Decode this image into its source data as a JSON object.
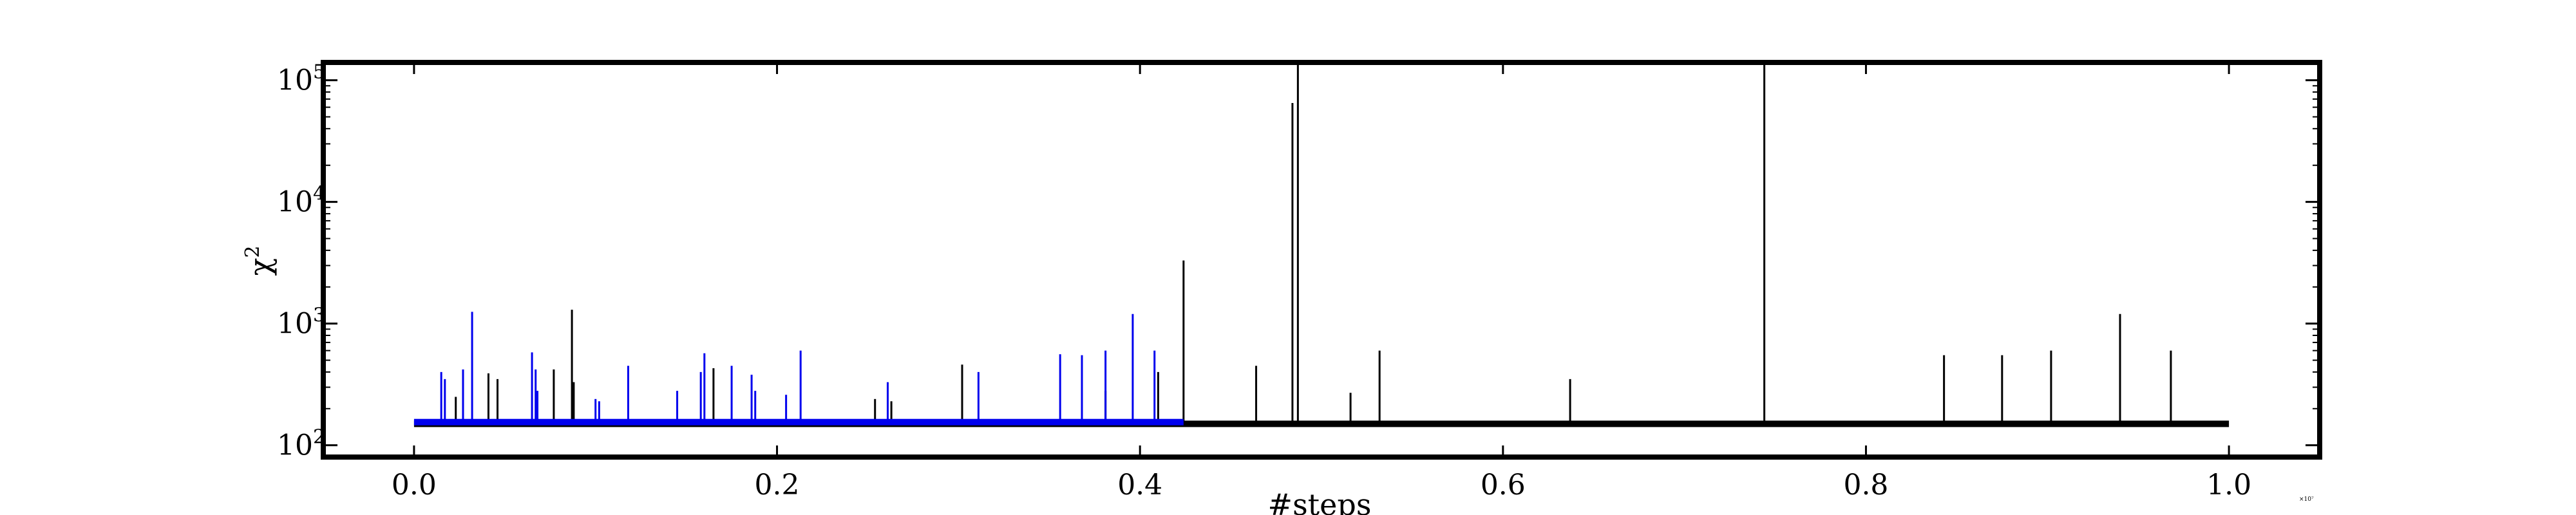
{
  "chart_data": {
    "type": "line",
    "title": "",
    "xlabel": "#steps",
    "ylabel_symbol": "χ",
    "ylabel_exp": "2",
    "x_multiplier": "×10⁷",
    "xlim": [
      -0.05,
      1.05
    ],
    "ylim": [
      80,
      140000
    ],
    "y_scale": "log",
    "grid": false,
    "legend": "none",
    "x_ticks": [
      0.0,
      0.2,
      0.4,
      0.6,
      0.8,
      1.0
    ],
    "x_tick_labels": [
      "0.0",
      "0.2",
      "0.4",
      "0.6",
      "0.8",
      "1.0"
    ],
    "y_ticks": [
      100,
      1000,
      10000,
      100000
    ],
    "y_tick_base": "10",
    "y_tick_exps": [
      "2",
      "3",
      "4",
      "5"
    ],
    "series": [
      {
        "color": "#000000",
        "x_range": [
          0.0,
          1.0
        ],
        "baseline": 150,
        "spikes": [
          [
            0.023,
            250
          ],
          [
            0.041,
            390
          ],
          [
            0.046,
            350
          ],
          [
            0.077,
            420
          ],
          [
            0.087,
            1300
          ],
          [
            0.088,
            330
          ],
          [
            0.165,
            430
          ],
          [
            0.254,
            240
          ],
          [
            0.263,
            230
          ],
          [
            0.302,
            460
          ],
          [
            0.381,
            280
          ],
          [
            0.41,
            400
          ],
          [
            0.424,
            3300
          ],
          [
            0.464,
            450
          ],
          [
            0.484,
            65000
          ],
          [
            0.487,
            140000
          ],
          [
            0.516,
            270
          ],
          [
            0.532,
            600
          ],
          [
            0.637,
            350
          ],
          [
            0.744,
            140000
          ],
          [
            0.843,
            550
          ],
          [
            0.875,
            550
          ],
          [
            0.902,
            600
          ],
          [
            0.94,
            1200
          ],
          [
            0.968,
            600
          ]
        ]
      },
      {
        "color": "#0000ee",
        "x_range": [
          0.0,
          0.424
        ],
        "baseline": 155,
        "spikes": [
          [
            0.015,
            400
          ],
          [
            0.017,
            350
          ],
          [
            0.027,
            420
          ],
          [
            0.032,
            1250
          ],
          [
            0.065,
            580
          ],
          [
            0.067,
            420
          ],
          [
            0.068,
            280
          ],
          [
            0.1,
            240
          ],
          [
            0.102,
            230
          ],
          [
            0.118,
            450
          ],
          [
            0.145,
            280
          ],
          [
            0.158,
            400
          ],
          [
            0.16,
            570
          ],
          [
            0.175,
            450
          ],
          [
            0.186,
            380
          ],
          [
            0.188,
            280
          ],
          [
            0.205,
            260
          ],
          [
            0.213,
            600
          ],
          [
            0.261,
            330
          ],
          [
            0.311,
            400
          ],
          [
            0.356,
            560
          ],
          [
            0.368,
            550
          ],
          [
            0.381,
            600
          ],
          [
            0.396,
            1200
          ],
          [
            0.408,
            600
          ]
        ]
      }
    ]
  }
}
